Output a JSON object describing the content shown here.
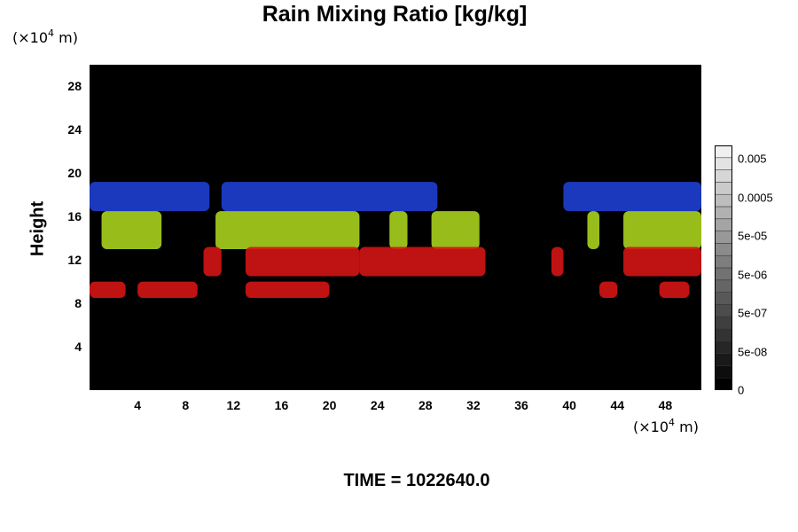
{
  "chart_data": {
    "type": "heatmap",
    "title": "Rain Mixing Ratio [kg/kg]",
    "ylabel": "Height",
    "xlabel": "",
    "x_unit_base": "(×10",
    "x_unit_exp": "4",
    "x_unit_tail": " m)",
    "y_unit_base": "(×10",
    "y_unit_exp": "4",
    "y_unit_tail": " m)",
    "xlim": [
      0,
      51
    ],
    "ylim": [
      0,
      30
    ],
    "x_ticks": [
      "4",
      "8",
      "12",
      "16",
      "20",
      "24",
      "28",
      "32",
      "36",
      "40",
      "44",
      "48"
    ],
    "y_ticks": [
      "4",
      "8",
      "12",
      "16",
      "20",
      "24",
      "28"
    ],
    "background_color": "#000000",
    "colorbar": {
      "labels": [
        "0.005",
        "0.0005",
        "5e-05",
        "5e-06",
        "5e-07",
        "5e-08",
        "0"
      ],
      "levels": 20
    },
    "layers": [
      {
        "color": "#1e3fd0",
        "y_range": [
          16.5,
          19.2
        ],
        "segments": [
          [
            0,
            10
          ],
          [
            11,
            29
          ],
          [
            39.5,
            51
          ]
        ]
      },
      {
        "color": "#a8d21e",
        "y_range": [
          13,
          16.5
        ],
        "segments": [
          [
            1,
            6
          ],
          [
            10.5,
            22.5
          ],
          [
            25,
            26.5
          ],
          [
            28.5,
            32.5
          ],
          [
            41.5,
            42.5
          ],
          [
            44.5,
            51
          ]
        ]
      },
      {
        "color": "#d41414",
        "y_range": [
          10.5,
          13.2
        ],
        "segments": [
          [
            9.5,
            11
          ],
          [
            13,
            22.5
          ],
          [
            22.5,
            33
          ],
          [
            38.5,
            39.5
          ],
          [
            44.5,
            51
          ]
        ]
      },
      {
        "color": "#d41414",
        "y_range": [
          8.5,
          10
        ],
        "segments": [
          [
            0,
            3
          ],
          [
            4,
            9
          ],
          [
            13,
            20
          ],
          [
            42.5,
            44
          ],
          [
            47.5,
            50
          ]
        ]
      }
    ]
  },
  "footer": {
    "time": "TIME = 1022640.0"
  }
}
